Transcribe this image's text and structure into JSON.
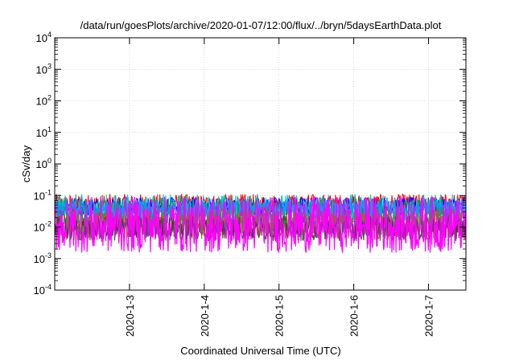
{
  "chart_data": {
    "type": "line",
    "title": "/data/run/goesPlots/archive/2020-01-07/12:00/flux/../bryn/5daysEarthData.plot",
    "xlabel": "Coordinated Universal Time (UTC)",
    "ylabel": "cSv/day",
    "x_range": [
      "2020-01-02T00:00",
      "2020-01-07T12:00"
    ],
    "x_ticks": [
      "2020-1-3",
      "2020-1-4",
      "2020-1-5",
      "2020-1-6",
      "2020-1-7"
    ],
    "y_scale": "log",
    "y_range": [
      0.0001,
      10000
    ],
    "y_tick_bases": [
      "10",
      "10",
      "10",
      "10",
      "10",
      "10",
      "10",
      "10",
      "10"
    ],
    "y_tick_exponents": [
      "-4",
      "-3",
      "-2",
      "-1",
      "0",
      "1",
      "2",
      "3",
      "4"
    ],
    "grid": true,
    "series": [
      {
        "color": "#ff0000",
        "typical": 0.05,
        "spread": 0.35
      },
      {
        "color": "#0000ff",
        "typical": 0.045,
        "spread": 0.3
      },
      {
        "color": "#00c8c8",
        "typical": 0.035,
        "spread": 0.5
      },
      {
        "color": "#00a060",
        "typical": 0.02,
        "spread": 0.6
      },
      {
        "color": "#808000",
        "typical": 0.012,
        "spread": 0.5
      },
      {
        "color": "#404040",
        "typical": 0.009,
        "spread": 0.4
      },
      {
        "color": "#1e90ff",
        "typical": 0.04,
        "spread": 0.25
      },
      {
        "color": "#ff00ff",
        "typical": 0.012,
        "spread": 0.9
      }
    ]
  }
}
